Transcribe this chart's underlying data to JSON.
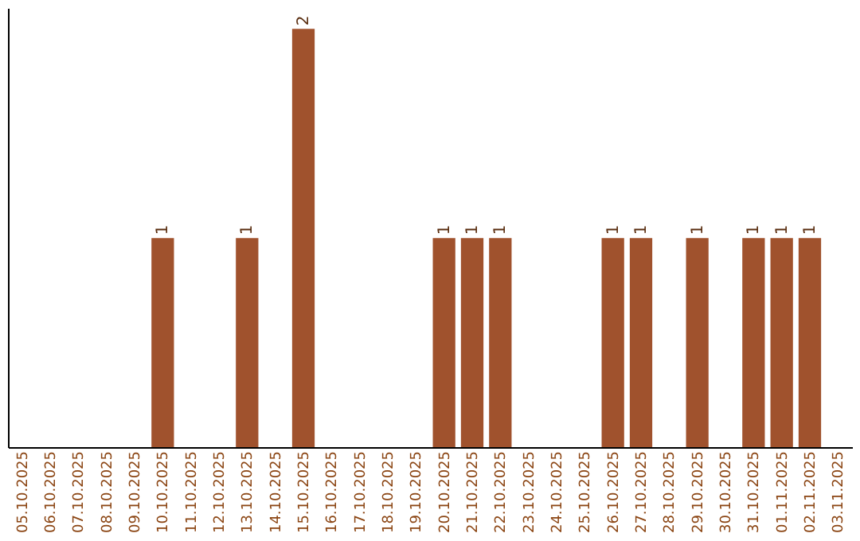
{
  "chart_data": {
    "type": "bar",
    "categories": [
      "05.10.2025",
      "06.10.2025",
      "07.10.2025",
      "08.10.2025",
      "09.10.2025",
      "10.10.2025",
      "11.10.2025",
      "12.10.2025",
      "13.10.2025",
      "14.10.2025",
      "15.10.2025",
      "16.10.2025",
      "17.10.2025",
      "18.10.2025",
      "19.10.2025",
      "20.10.2025",
      "21.10.2025",
      "22.10.2025",
      "23.10.2025",
      "24.10.2025",
      "25.10.2025",
      "26.10.2025",
      "27.10.2025",
      "28.10.2025",
      "29.10.2025",
      "30.10.2025",
      "31.10.2025",
      "01.11.2025",
      "02.11.2025",
      "03.11.2025"
    ],
    "values": [
      0,
      0,
      0,
      0,
      0,
      1,
      0,
      0,
      1,
      0,
      2,
      0,
      0,
      0,
      0,
      1,
      1,
      1,
      0,
      0,
      0,
      1,
      1,
      0,
      1,
      0,
      1,
      1,
      1,
      0
    ],
    "value_labels": [
      null,
      null,
      null,
      null,
      null,
      "1",
      null,
      null,
      "1",
      null,
      "2",
      null,
      null,
      null,
      null,
      "1",
      "1",
      "1",
      null,
      null,
      null,
      "1",
      "1",
      null,
      "1",
      null,
      "1",
      "1",
      "1",
      null
    ],
    "color": "#a0522d",
    "ylim": [
      0,
      2.1
    ],
    "tick_labels": "x",
    "grid": false
  }
}
